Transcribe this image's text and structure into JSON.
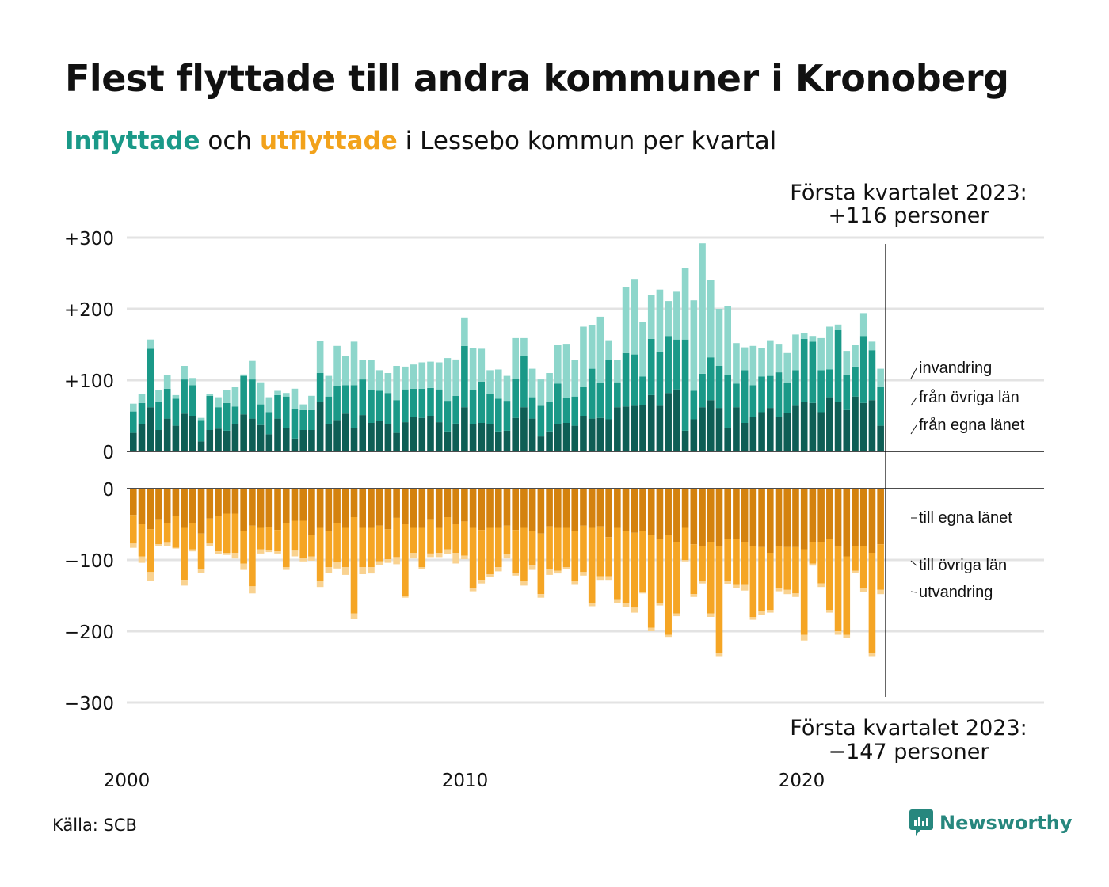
{
  "title": "Flest flyttade till andra kommuner i Kronoberg",
  "subtitle": {
    "in_label": "Inflyttade",
    "and_label": " och ",
    "out_label": "utflyttade",
    "rest": " i Lessebo kommun per kvartal"
  },
  "source": "Källa: SCB",
  "brand": "Newsworthy",
  "colors": {
    "in_dark": "#0e5e55",
    "in_mid": "#1a9988",
    "in_light": "#8dd6cb",
    "out_dark": "#d4820e",
    "out_mid": "#f5a524",
    "out_light": "#f9d290",
    "grid": "#e3e3e3"
  },
  "chart_data": {
    "type": "bar",
    "stacked": true,
    "x_start": "2000 Q1",
    "x_end": "2023 Q1",
    "x_ticks": [
      "2000",
      "2010",
      "2020"
    ],
    "y_ticks_top": [
      "+300",
      "+200",
      "+100",
      "0"
    ],
    "y_ticks_bottom": [
      "0",
      "−100",
      "−200",
      "−300"
    ],
    "ylim_top": [
      0,
      300
    ],
    "ylim_bottom": [
      -300,
      0
    ],
    "grid": true,
    "annotation_top": {
      "line1": "Första kvartalet 2023:",
      "line2": "+116 personer"
    },
    "annotation_bottom": {
      "line1": "Första kvartalet 2023:",
      "line2": "−147 personer"
    },
    "inflow_series": [
      {
        "name": "från egna länet",
        "values": [
          26,
          38,
          62,
          30,
          46,
          36,
          53,
          50,
          14,
          30,
          32,
          29,
          38,
          52,
          46,
          37,
          24,
          46,
          33,
          18,
          30,
          30,
          69,
          38,
          44,
          53,
          33,
          51,
          40,
          43,
          38,
          26,
          41,
          48,
          47,
          50,
          41,
          28,
          39,
          62,
          38,
          40,
          38,
          28,
          29,
          47,
          62,
          46,
          21,
          28,
          38,
          40,
          36,
          50,
          46,
          47,
          45,
          62,
          63,
          64,
          65,
          79,
          64,
          82,
          87,
          29,
          45,
          62,
          72,
          61,
          33,
          62,
          40,
          48,
          55,
          61,
          48,
          54,
          64,
          70,
          68,
          55,
          76,
          70,
          58,
          77,
          68,
          72,
          36
        ]
      },
      {
        "name": "från övriga län",
        "values": [
          30,
          30,
          82,
          40,
          42,
          38,
          48,
          43,
          30,
          48,
          30,
          39,
          25,
          54,
          55,
          29,
          31,
          33,
          44,
          41,
          28,
          28,
          41,
          39,
          48,
          40,
          60,
          50,
          46,
          42,
          44,
          46,
          46,
          40,
          41,
          39,
          46,
          43,
          39,
          86,
          48,
          58,
          43,
          46,
          42,
          55,
          72,
          30,
          43,
          42,
          57,
          35,
          41,
          40,
          70,
          49,
          83,
          35,
          75,
          72,
          40,
          79,
          76,
          80,
          70,
          128,
          40,
          47,
          60,
          59,
          74,
          33,
          74,
          45,
          50,
          45,
          63,
          42,
          50,
          88,
          86,
          59,
          39,
          100,
          50,
          42,
          94,
          70,
          54
        ]
      },
      {
        "name": "invandring",
        "values": [
          11,
          13,
          13,
          16,
          19,
          5,
          19,
          10,
          3,
          2,
          14,
          18,
          27,
          2,
          26,
          31,
          21,
          6,
          5,
          29,
          8,
          20,
          45,
          29,
          56,
          41,
          61,
          27,
          42,
          29,
          28,
          48,
          32,
          34,
          37,
          37,
          38,
          60,
          51,
          40,
          59,
          46,
          33,
          41,
          35,
          57,
          25,
          40,
          37,
          40,
          55,
          76,
          51,
          85,
          61,
          93,
          28,
          31,
          93,
          106,
          77,
          62,
          87,
          49,
          67,
          100,
          127,
          183,
          108,
          80,
          97,
          57,
          32,
          55,
          40,
          50,
          40,
          42,
          50,
          8,
          8,
          45,
          60,
          8,
          33,
          31,
          32,
          12,
          26
        ]
      }
    ],
    "outflow_series": [
      {
        "name": "till egna länet",
        "values": [
          -37,
          -50,
          -57,
          -43,
          -48,
          -38,
          -55,
          -48,
          -63,
          -42,
          -38,
          -35,
          -35,
          -60,
          -52,
          -55,
          -54,
          -58,
          -48,
          -45,
          -45,
          -65,
          -55,
          -60,
          -48,
          -55,
          -40,
          -55,
          -55,
          -52,
          -57,
          -41,
          -50,
          -55,
          -55,
          -43,
          -55,
          -40,
          -50,
          -46,
          -55,
          -58,
          -55,
          -55,
          -52,
          -58,
          -55,
          -60,
          -63,
          -53,
          -55,
          -55,
          -60,
          -52,
          -55,
          -53,
          -68,
          -55,
          -60,
          -62,
          -60,
          -65,
          -70,
          -65,
          -75,
          -55,
          -78,
          -80,
          -75,
          -80,
          -70,
          -70,
          -75,
          -80,
          -82,
          -90,
          -80,
          -82,
          -82,
          -85,
          -75,
          -75,
          -70,
          -80,
          -95,
          -80,
          -80,
          -90,
          -78
        ]
      },
      {
        "name": "till övriga län",
        "values": [
          -40,
          -45,
          -60,
          -35,
          -28,
          -45,
          -73,
          -37,
          -50,
          -35,
          -50,
          -55,
          -55,
          -45,
          -85,
          -30,
          -32,
          -30,
          -62,
          -42,
          -52,
          -30,
          -75,
          -50,
          -55,
          -55,
          -135,
          -55,
          -55,
          -50,
          -42,
          -55,
          -100,
          -35,
          -55,
          -48,
          -35,
          -45,
          -40,
          -48,
          -85,
          -70,
          -65,
          -55,
          -40,
          -60,
          -75,
          -48,
          -85,
          -60,
          -60,
          -55,
          -70,
          -65,
          -105,
          -70,
          -55,
          -100,
          -100,
          -105,
          -85,
          -130,
          -90,
          -140,
          -100,
          -45,
          -70,
          -50,
          -100,
          -150,
          -60,
          -65,
          -60,
          -100,
          -90,
          -80,
          -60,
          -60,
          -65,
          -120,
          -30,
          -58,
          -100,
          -120,
          -110,
          -35,
          -60,
          -140,
          -64
        ]
      },
      {
        "name": "utvandring",
        "values": [
          -6,
          -9,
          -13,
          -3,
          -5,
          -1,
          -8,
          -3,
          -5,
          -3,
          -4,
          -3,
          -8,
          -9,
          -10,
          -6,
          -3,
          -3,
          -4,
          -8,
          -5,
          -6,
          -8,
          -8,
          -9,
          -11,
          -8,
          -10,
          -9,
          -5,
          -5,
          -10,
          -3,
          -8,
          -3,
          -5,
          -6,
          -7,
          -15,
          -5,
          -4,
          -5,
          -4,
          -6,
          -6,
          -4,
          -6,
          -6,
          -5,
          -8,
          -4,
          -3,
          -5,
          -5,
          -5,
          -5,
          -5,
          -5,
          -6,
          -7,
          -2,
          -5,
          -4,
          -3,
          -4,
          -2,
          -4,
          -3,
          -5,
          -5,
          -4,
          -5,
          -8,
          -4,
          -5,
          -4,
          -4,
          -6,
          -5,
          -8,
          -3,
          -5,
          -4,
          -5,
          -5,
          -3,
          -5,
          -5,
          -6
        ]
      }
    ],
    "series_labels": {
      "in_light": "invandring",
      "in_mid": "från övriga län",
      "in_dark": "från egna länet",
      "out_dark": "till egna länet",
      "out_mid": "till övriga län",
      "out_light": "utvandring"
    }
  }
}
